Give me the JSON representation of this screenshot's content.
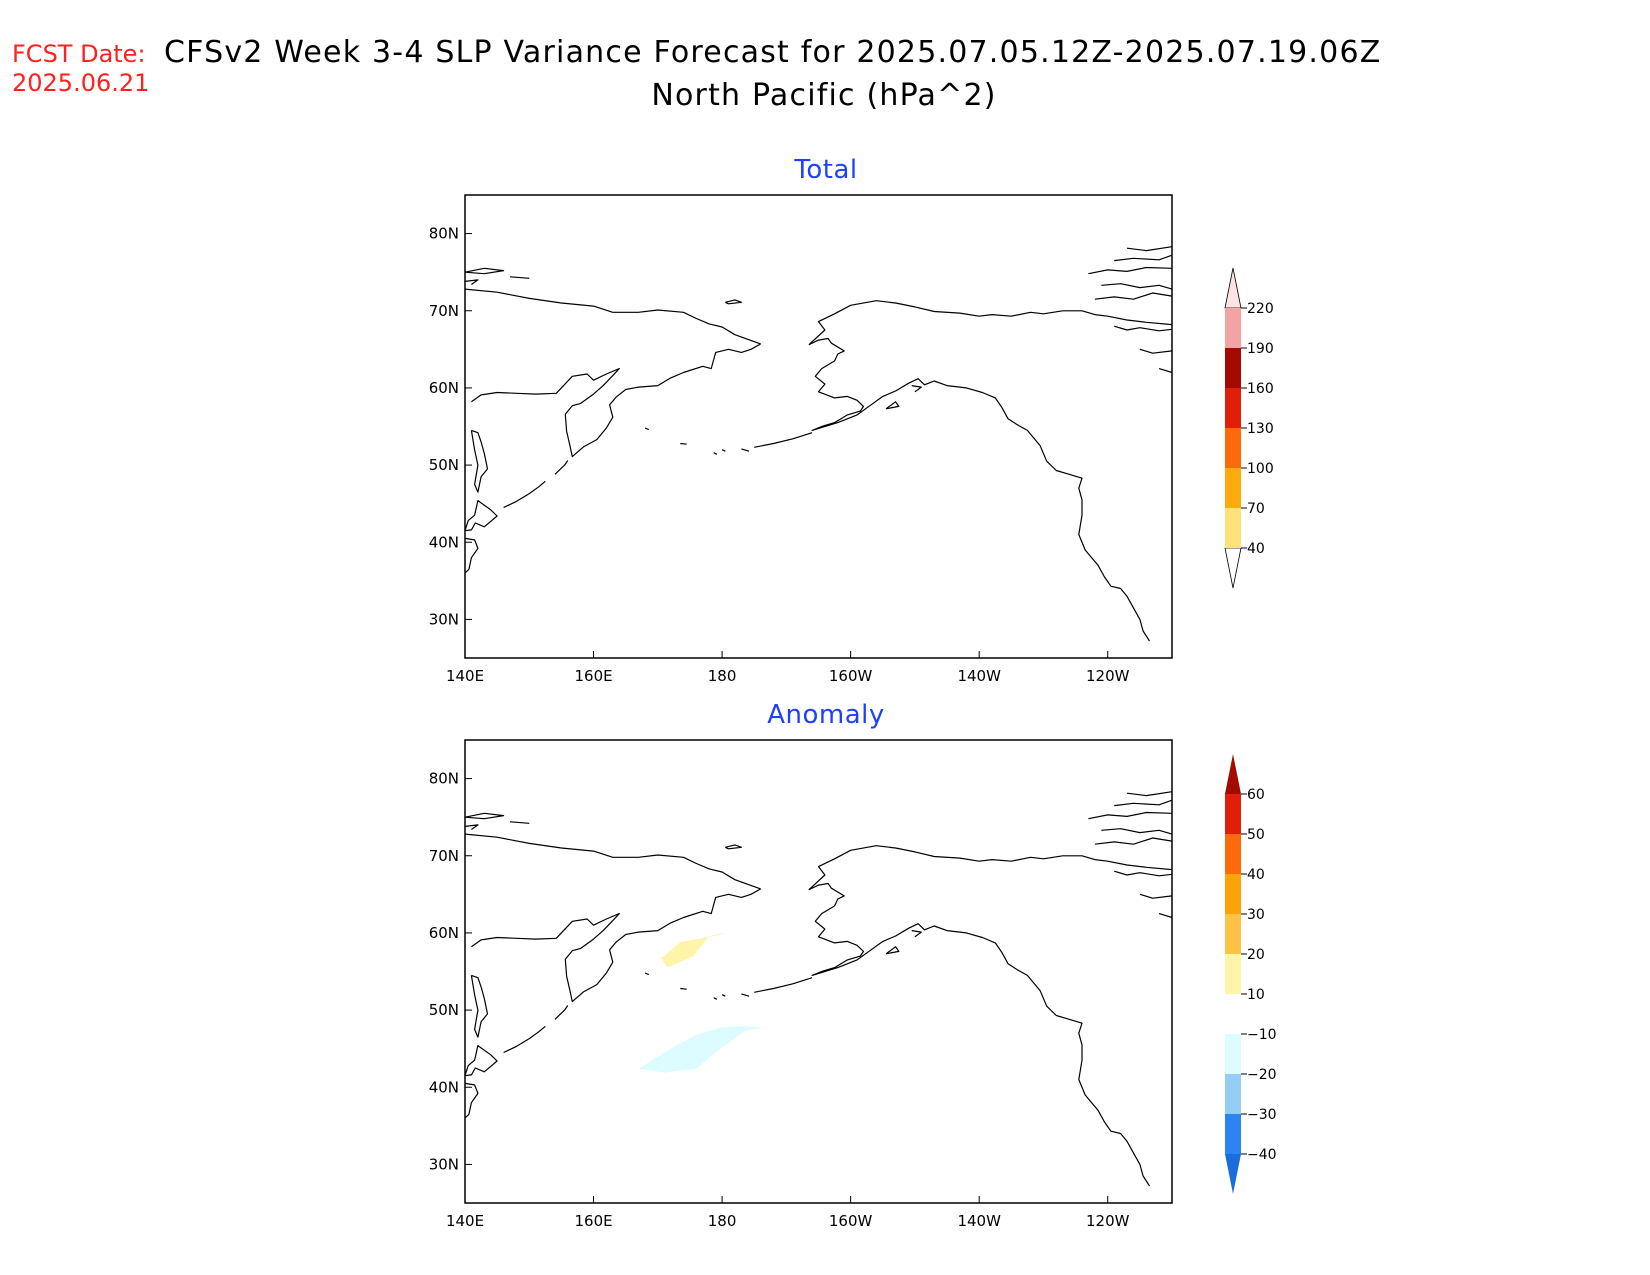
{
  "header": {
    "fcst_label": "FCST Date:",
    "fcst_date": "2025.06.21",
    "title_line1": "CFSv2 Week 3-4 SLP Variance Forecast for 2025.07.05.12Z-2025.07.19.06Z",
    "title_line2": "North Pacific (hPa^2)"
  },
  "map": {
    "lon_ticks": [
      "140E",
      "160E",
      "180",
      "160W",
      "140W",
      "120W"
    ],
    "lat_ticks": [
      "80N",
      "70N",
      "60N",
      "50N",
      "40N",
      "30N"
    ]
  },
  "chart_data": [
    {
      "type": "heatmap",
      "title": "Total",
      "x_extent_deg_east": [
        140,
        250
      ],
      "y_extent_deg_north": [
        25,
        85
      ],
      "xticks": [
        "140E",
        "160E",
        "180",
        "160W",
        "140W",
        "120W"
      ],
      "yticks": [
        "80N",
        "70N",
        "60N",
        "50N",
        "40N",
        "30N"
      ],
      "colorbar": {
        "levels": [
          40,
          70,
          100,
          130,
          160,
          190,
          220
        ],
        "labels": [
          "40",
          "70",
          "100",
          "130",
          "160",
          "190",
          "220"
        ],
        "colors": [
          "#fde27a",
          "#fcaa0e",
          "#fd6a0b",
          "#e01e0a",
          "#a30b00",
          "#f2a3a3",
          "#fde4e4"
        ],
        "extend_low": true,
        "extend_high": true
      },
      "features": []
    },
    {
      "type": "heatmap",
      "title": "Anomaly",
      "x_extent_deg_east": [
        140,
        250
      ],
      "y_extent_deg_north": [
        25,
        85
      ],
      "xticks": [
        "140E",
        "160E",
        "180",
        "160W",
        "140W",
        "120W"
      ],
      "yticks": [
        "80N",
        "70N",
        "60N",
        "50N",
        "40N",
        "30N"
      ],
      "colorbar": {
        "levels": [
          -40,
          -30,
          -20,
          -10,
          10,
          20,
          30,
          40,
          50,
          60
        ],
        "labels": [
          "-40",
          "-30",
          "-20",
          "-10",
          "10",
          "20",
          "30",
          "40",
          "50",
          "60"
        ],
        "colors": [
          "#1a6ddb",
          "#2b84f2",
          "#96cdf6",
          "#dcfcff",
          "#ffffff",
          "#fff5a8",
          "#fdc246",
          "#fca20b",
          "#fd6a0b",
          "#e01e0a",
          "#a30b00"
        ],
        "extend_low": true,
        "extend_high": true
      },
      "features": [
        {
          "range": [
            10,
            20
          ],
          "color": "#fff5a8",
          "polygon": [
            [
              171,
              57
            ],
            [
              173.5,
              58.8
            ],
            [
              180,
              59.8
            ],
            [
              180.5,
              60
            ],
            [
              178,
              59.6
            ],
            [
              175.5,
              57
            ],
            [
              171.5,
              55.5
            ],
            [
              170.5,
              56.8
            ]
          ]
        },
        {
          "range": [
            -20,
            -10
          ],
          "color": "#dcfcff",
          "polygon": [
            [
              167,
              42.4
            ],
            [
              172,
              45
            ],
            [
              176,
              46.8
            ],
            [
              180,
              47.8
            ],
            [
              184,
              47.9
            ],
            [
              186.5,
              47.7
            ],
            [
              183.5,
              47.3
            ],
            [
              179,
              44.5
            ],
            [
              176,
              42.4
            ],
            [
              171,
              41.9
            ]
          ]
        }
      ]
    }
  ]
}
